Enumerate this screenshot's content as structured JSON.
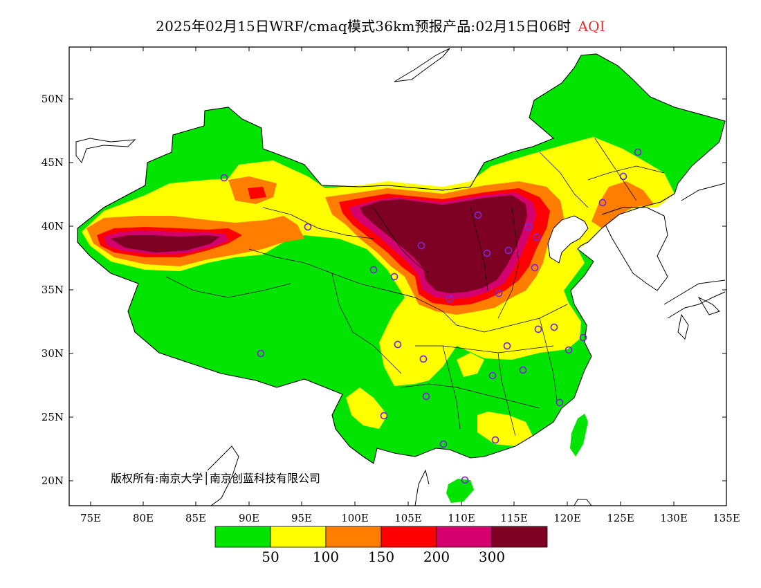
{
  "header": {
    "title": "2025年02月15日WRF/cmaq模式36km预报产品:02月15日06时",
    "variable": "AQI"
  },
  "map": {
    "lat_ticks": [
      "50N",
      "45N",
      "40N",
      "35N",
      "30N",
      "25N",
      "20N"
    ],
    "lon_ticks": [
      "75E",
      "80E",
      "85E",
      "90E",
      "95E",
      "100E",
      "105E",
      "110E",
      "115E",
      "120E",
      "125E",
      "130E",
      "135E"
    ],
    "copyright": "版权所有:南京大学│南京创蓝科技有限公司"
  },
  "legend": {
    "colors": [
      "#00e400",
      "#ffff00",
      "#ff7e00",
      "#ff0000",
      "#d4006e",
      "#7e0023"
    ],
    "labels": [
      "50",
      "100",
      "150",
      "200",
      "300"
    ]
  }
}
